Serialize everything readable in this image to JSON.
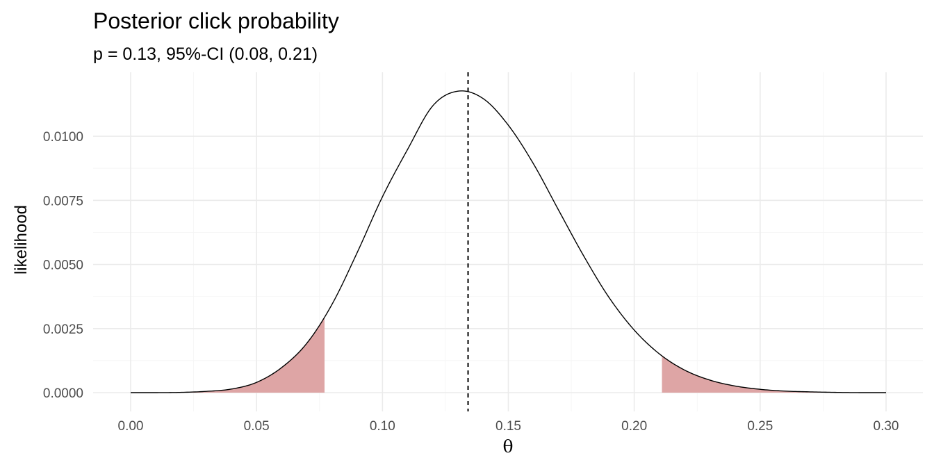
{
  "chart_data": {
    "type": "area",
    "title": "Posterior click probability",
    "subtitle": "p = 0.13, 95%-CI (0.08, 0.21)",
    "xlabel": "θ",
    "ylabel": "likelihood",
    "xlim": [
      0.0,
      0.3
    ],
    "ylim": [
      0.0,
      0.0119
    ],
    "x_ticks": [
      0.0,
      0.05,
      0.1,
      0.15,
      0.2,
      0.25,
      0.3
    ],
    "x_tick_labels": [
      "0.00",
      "0.05",
      "0.10",
      "0.15",
      "0.20",
      "0.25",
      "0.30"
    ],
    "y_ticks": [
      0.0,
      0.0025,
      0.005,
      0.0075,
      0.01
    ],
    "y_tick_labels": [
      "0.0000",
      "0.0025",
      "0.0050",
      "0.0075",
      "0.0100"
    ],
    "grid": true,
    "series": [
      {
        "x": [
          0.0,
          0.01,
          0.02,
          0.03,
          0.04,
          0.05,
          0.06,
          0.07,
          0.08,
          0.09,
          0.1,
          0.11,
          0.12,
          0.13,
          0.14,
          0.15,
          0.16,
          0.17,
          0.18,
          0.19,
          0.2,
          0.21,
          0.22,
          0.23,
          0.24,
          0.25,
          0.26,
          0.27,
          0.28,
          0.29,
          0.3
        ],
        "values": [
          0.0,
          0.0,
          1e-05,
          5e-05,
          0.00014,
          0.0004,
          0.00098,
          0.00193,
          0.00345,
          0.00547,
          0.00764,
          0.00949,
          0.01119,
          0.01176,
          0.01147,
          0.01043,
          0.00892,
          0.00711,
          0.00532,
          0.00371,
          0.00244,
          0.00151,
          0.00088,
          0.00049,
          0.00026,
          0.00013,
          6e-05,
          3e-05,
          1e-05,
          0.0,
          0.0
        ]
      }
    ],
    "shaded_regions": [
      {
        "x_from": 0.0,
        "x_to": 0.077,
        "color": "#dea5a5"
      },
      {
        "x_from": 0.211,
        "x_to": 0.3,
        "color": "#dea5a5"
      }
    ],
    "reference_line": {
      "x": 0.134,
      "style": "dashed"
    }
  }
}
